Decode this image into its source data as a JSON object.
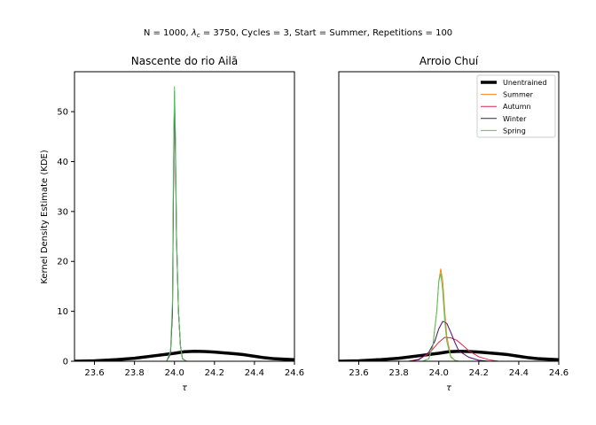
{
  "suptitle": "N = 1000, λ_c = 3750, Cycles = 3, Start = Summer, Repetitions = 100",
  "suptitle_parts": {
    "before": "N = 1000, ",
    "lambda": "λ",
    "sub": "c",
    "after": " = 3750, Cycles = 3, Start = Summer, Repetitions = 100"
  },
  "ylabel": "Kernel Density Estimate (KDE)",
  "legend_labels": [
    "Unentrained",
    "Summer",
    "Autumn",
    "Winter",
    "Spring"
  ],
  "colors": {
    "Unentrained": "#000000",
    "Summer": "#ff7f0e",
    "Autumn": "#d62748",
    "Winter": "#4b0a6e",
    "Spring": "#4ac85a"
  },
  "chart_data": [
    {
      "type": "line",
      "title": "Nascente do rio Ailã",
      "xlabel": "τ",
      "ylabel": "Kernel Density Estimate (KDE)",
      "xlim": [
        23.5,
        24.6
      ],
      "ylim": [
        0,
        58
      ],
      "xticks": [
        "23.6",
        "23.8",
        "24.0",
        "24.2",
        "24.4",
        "24.6"
      ],
      "yticks": [
        "0",
        "10",
        "20",
        "30",
        "40",
        "50"
      ],
      "grid": false,
      "series": [
        {
          "name": "Unentrained",
          "x": [
            23.5,
            23.6,
            23.7,
            23.8,
            23.9,
            24.0,
            24.05,
            24.1,
            24.15,
            24.2,
            24.3,
            24.35,
            24.4,
            24.45,
            24.5,
            24.6
          ],
          "y": [
            0.0,
            0.1,
            0.3,
            0.6,
            1.1,
            1.6,
            1.9,
            2.0,
            1.95,
            1.85,
            1.5,
            1.3,
            1.0,
            0.7,
            0.5,
            0.3
          ]
        },
        {
          "name": "Summer",
          "x": [
            23.96,
            23.98,
            23.99,
            23.995,
            24.0,
            24.005,
            24.01,
            24.02,
            24.03,
            24.04,
            24.06
          ],
          "y": [
            0,
            1.5,
            10,
            35,
            53,
            42,
            25,
            10,
            3,
            0.5,
            0
          ]
        },
        {
          "name": "Autumn",
          "x": [
            23.96,
            23.98,
            23.99,
            23.995,
            24.0,
            24.005,
            24.01,
            24.02,
            24.03,
            24.04,
            24.06
          ],
          "y": [
            0,
            1.5,
            10,
            36,
            54,
            43,
            25,
            10,
            3,
            0.5,
            0
          ]
        },
        {
          "name": "Winter",
          "x": [
            23.96,
            23.98,
            23.99,
            23.995,
            24.0,
            24.005,
            24.01,
            24.02,
            24.03,
            24.04,
            24.06
          ],
          "y": [
            0,
            1.5,
            10,
            35,
            53,
            42,
            25,
            10,
            3,
            0.5,
            0
          ]
        },
        {
          "name": "Spring",
          "x": [
            23.96,
            23.98,
            23.99,
            23.995,
            24.0,
            24.005,
            24.01,
            24.02,
            24.03,
            24.04,
            24.06
          ],
          "y": [
            0,
            2,
            12,
            40,
            55,
            45,
            26,
            10,
            3,
            0.5,
            0
          ]
        }
      ]
    },
    {
      "type": "line",
      "title": "Arroio Chuí",
      "xlabel": "τ",
      "xlim": [
        23.5,
        24.6
      ],
      "ylim": [
        0,
        58
      ],
      "xticks": [
        "23.6",
        "23.8",
        "24.0",
        "24.2",
        "24.4",
        "24.6"
      ],
      "yticks": [],
      "grid": false,
      "legend": "top-right",
      "series": [
        {
          "name": "Unentrained",
          "x": [
            23.5,
            23.6,
            23.7,
            23.8,
            23.9,
            24.0,
            24.05,
            24.1,
            24.15,
            24.2,
            24.3,
            24.35,
            24.4,
            24.45,
            24.5,
            24.6
          ],
          "y": [
            0.0,
            0.1,
            0.3,
            0.6,
            1.1,
            1.6,
            1.9,
            2.0,
            1.95,
            1.85,
            1.5,
            1.3,
            1.0,
            0.7,
            0.5,
            0.3
          ]
        },
        {
          "name": "Summer",
          "x": [
            23.92,
            23.95,
            23.97,
            23.99,
            24.0,
            24.01,
            24.02,
            24.03,
            24.04,
            24.06,
            24.08,
            24.1
          ],
          "y": [
            0,
            0.5,
            3,
            10,
            16,
            18.5,
            16,
            10,
            5,
            1,
            0.2,
            0
          ]
        },
        {
          "name": "Autumn",
          "x": [
            23.85,
            23.9,
            23.95,
            24.0,
            24.03,
            24.06,
            24.09,
            24.12,
            24.15,
            24.2,
            24.25,
            24.3
          ],
          "y": [
            0,
            0.4,
            1.5,
            3.8,
            4.8,
            4.7,
            4.2,
            3.2,
            2.1,
            0.9,
            0.3,
            0
          ]
        },
        {
          "name": "Winter",
          "x": [
            23.85,
            23.9,
            23.95,
            23.98,
            24.0,
            24.02,
            24.04,
            24.06,
            24.08,
            24.1,
            24.15,
            24.2,
            24.25
          ],
          "y": [
            0,
            0.3,
            1.8,
            4.0,
            6.5,
            8.0,
            7.6,
            5.8,
            3.8,
            2.1,
            0.8,
            0.2,
            0
          ]
        },
        {
          "name": "Spring",
          "x": [
            23.92,
            23.95,
            23.97,
            23.99,
            24.0,
            24.01,
            24.02,
            24.03,
            24.04,
            24.06,
            24.08,
            24.1
          ],
          "y": [
            0,
            0.5,
            3,
            10,
            16,
            17.5,
            14,
            8,
            4,
            0.8,
            0.2,
            0
          ]
        }
      ]
    }
  ]
}
